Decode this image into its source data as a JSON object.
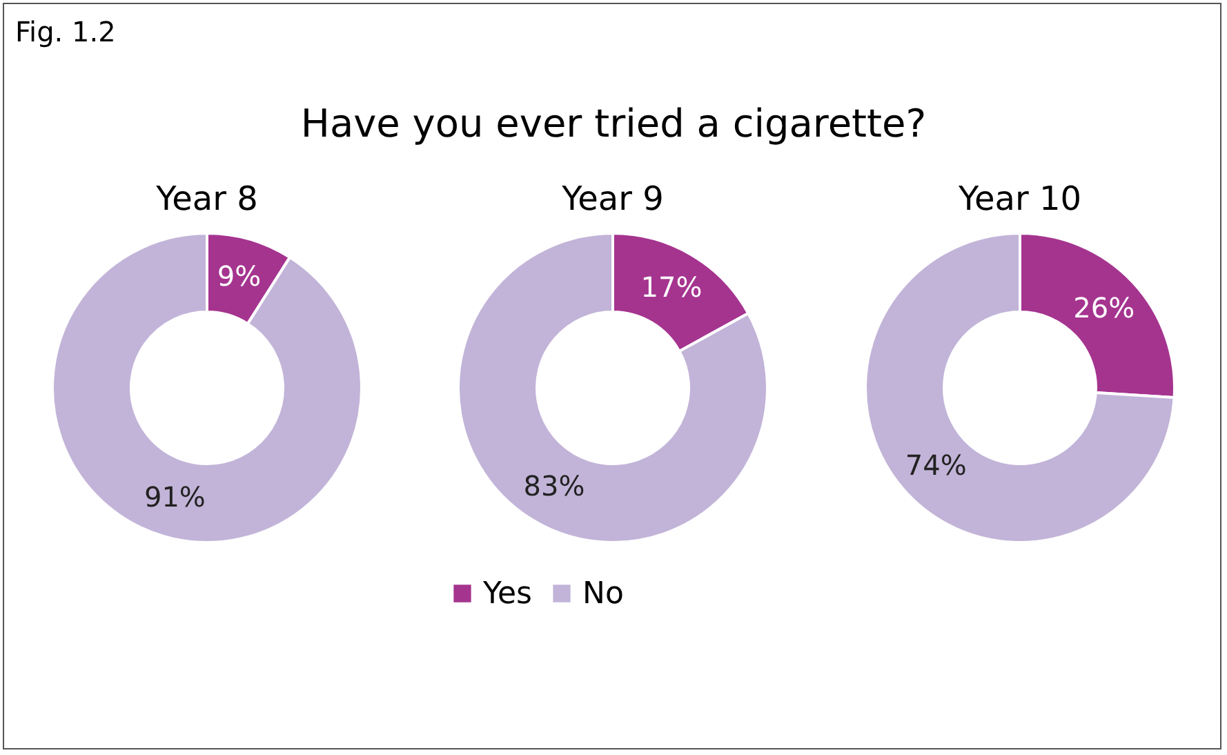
{
  "chart_data": [
    {
      "type": "other",
      "title": "Have you ever tried a cigarette?",
      "annotations": [
        "Fig. 1.2"
      ]
    },
    {
      "type": "donut",
      "title": "Year 8",
      "categories": [
        null,
        null
      ],
      "values": [
        9,
        91
      ],
      "colors": [
        "#a5348f",
        "#c2b4d8"
      ],
      "value_labels": [
        "9%",
        "91%"
      ]
    },
    {
      "type": "donut",
      "title": "Year 9",
      "categories": [
        "Yes",
        "No"
      ],
      "values": [
        17,
        83
      ],
      "colors": [
        "#a5348f",
        "#c2b4d8"
      ],
      "value_labels": [
        "17%",
        "83%"
      ],
      "legend": "bottom"
    },
    {
      "type": "donut",
      "title": "Year 10",
      "categories": [
        null,
        null
      ],
      "values": [
        26,
        74
      ],
      "colors": [
        "#a5348f",
        "#c2b4d8"
      ],
      "value_labels": [
        "26%",
        "74%"
      ]
    }
  ]
}
